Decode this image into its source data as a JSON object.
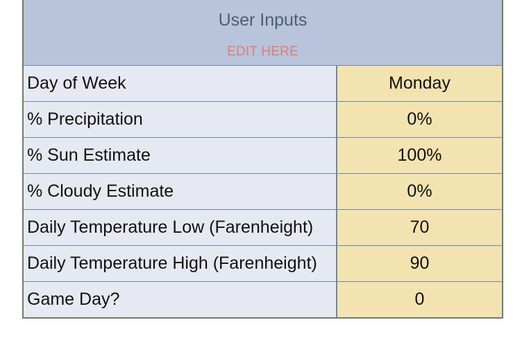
{
  "header": {
    "title": "User Inputs",
    "subtitle": "EDIT HERE"
  },
  "rows": [
    {
      "label": "Day of Week",
      "value": "Monday"
    },
    {
      "label": "% Precipitation",
      "value": "0%"
    },
    {
      "label": "% Sun Estimate",
      "value": "100%"
    },
    {
      "label": "% Cloudy Estimate",
      "value": "0%"
    },
    {
      "label": "Daily Temperature Low (Farenheight)",
      "value": "70"
    },
    {
      "label": "Daily Temperature High (Farenheight)",
      "value": "90"
    },
    {
      "label": "Game Day?",
      "value": "0"
    }
  ],
  "colors": {
    "header_bg": "#b7c4db",
    "label_bg": "#e6e9f2",
    "value_bg": "#f3e3b1",
    "edit_here_text": "#e07b73",
    "grid_line": "#6a86b0"
  }
}
